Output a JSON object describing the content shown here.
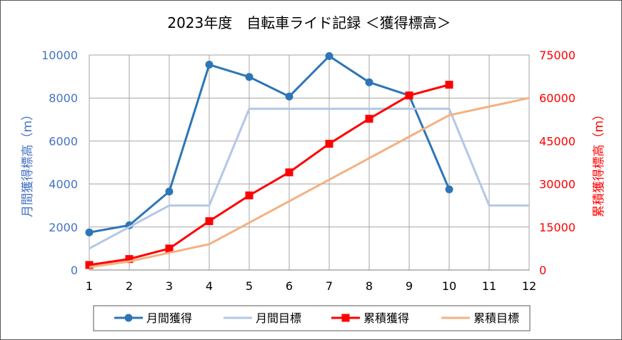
{
  "chart_data": {
    "type": "line",
    "title": "2023年度　自転車ライド記録 ＜獲得標高＞",
    "xlabel": "",
    "categories": [
      "1",
      "2",
      "3",
      "4",
      "5",
      "6",
      "7",
      "8",
      "9",
      "10",
      "11",
      "12"
    ],
    "y_left": {
      "label": "月間獲得標高（m）",
      "lim": [
        0,
        10000
      ],
      "ticks": [
        "0",
        "2000",
        "4000",
        "6000",
        "8000",
        "10000"
      ],
      "color": "#4472c4"
    },
    "y_right": {
      "label": "累積獲得標高（m）",
      "lim": [
        0,
        75000
      ],
      "ticks": [
        "0",
        "15000",
        "30000",
        "45000",
        "60000",
        "75000"
      ],
      "color": "#ff0000"
    },
    "grid": true,
    "legend_position": "bottom",
    "series": [
      {
        "name": "月間獲得",
        "axis": "left",
        "color": "#2e75b6",
        "marker": "circle",
        "values": [
          1750,
          2080,
          3650,
          9550,
          8980,
          8070,
          9950,
          8730,
          8120,
          3750,
          null,
          null
        ]
      },
      {
        "name": "月間目標",
        "axis": "left",
        "color": "#b4c7e7",
        "marker": "none",
        "values": [
          1000,
          2000,
          3000,
          3000,
          7500,
          7500,
          7500,
          7500,
          7500,
          7500,
          3000,
          3000
        ]
      },
      {
        "name": "累積獲得",
        "axis": "right",
        "color": "#ff0000",
        "marker": "square",
        "values": [
          1750,
          3830,
          7480,
          17030,
          26010,
          34080,
          44030,
          52760,
          60880,
          64630,
          null,
          null
        ]
      },
      {
        "name": "累積目標",
        "axis": "right",
        "color": "#f4b183",
        "marker": "none",
        "values": [
          1000,
          3000,
          6000,
          9000,
          16500,
          24000,
          31500,
          39000,
          46500,
          54000,
          57000,
          60000
        ]
      }
    ]
  }
}
